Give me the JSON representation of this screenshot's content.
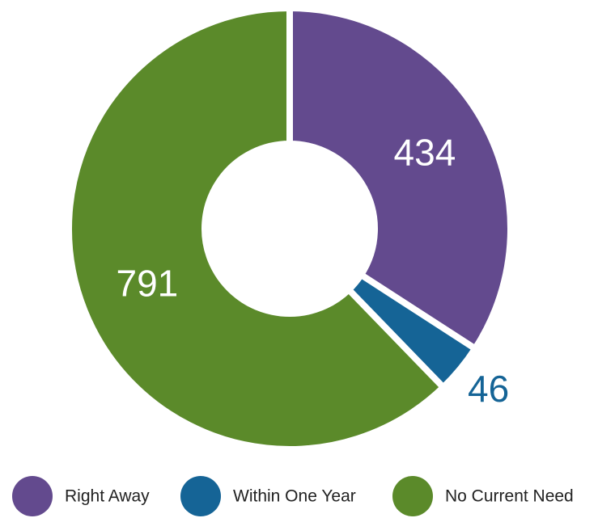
{
  "chart_data": {
    "type": "donut",
    "categories": [
      "Right Away",
      "Within One Year",
      "No Current Need"
    ],
    "values": [
      434,
      46,
      791
    ],
    "colors": [
      "#634a8e",
      "#156496",
      "#5b8a2a"
    ],
    "legend": "bottom"
  }
}
